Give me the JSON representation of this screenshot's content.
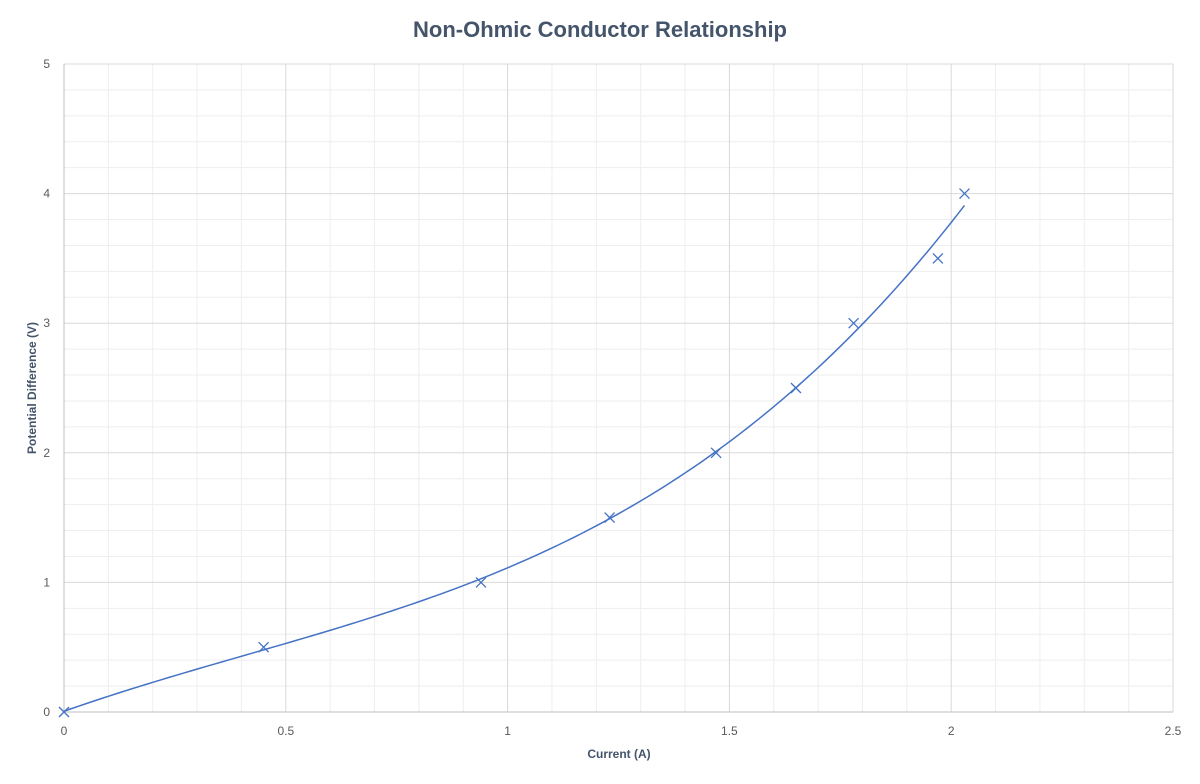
{
  "chart_data": {
    "type": "scatter",
    "title": "Non-Ohmic  Conductor  Relationship",
    "xlabel": "Current  (A)",
    "ylabel": "Potential Difference  (V)",
    "xlim": [
      0,
      2.5
    ],
    "ylim": [
      0,
      5
    ],
    "x_ticks": [
      0,
      0.5,
      1,
      1.5,
      2,
      2.5
    ],
    "x_tick_labels": [
      "0",
      "0.5",
      "1",
      "1.5",
      "2",
      "2.5"
    ],
    "y_ticks": [
      0,
      1,
      2,
      3,
      4,
      5
    ],
    "y_tick_labels": [
      "0",
      "1",
      "2",
      "3",
      "4",
      "5"
    ],
    "grid": true,
    "marker": "x",
    "trendline": "polynomial",
    "series": [
      {
        "x": [
          0,
          0.45,
          0.94,
          1.23,
          1.47,
          1.65,
          1.78,
          1.97,
          2.03
        ],
        "y": [
          0,
          0.5,
          1.0,
          1.5,
          2.0,
          2.5,
          3.0,
          3.5,
          4.0
        ]
      }
    ],
    "colors": {
      "series": "#4472C4",
      "major_grid": "#D9D9D9",
      "minor_grid": "#EEEEEE",
      "axis": "#BFBFBF",
      "title": "#44546A"
    }
  }
}
